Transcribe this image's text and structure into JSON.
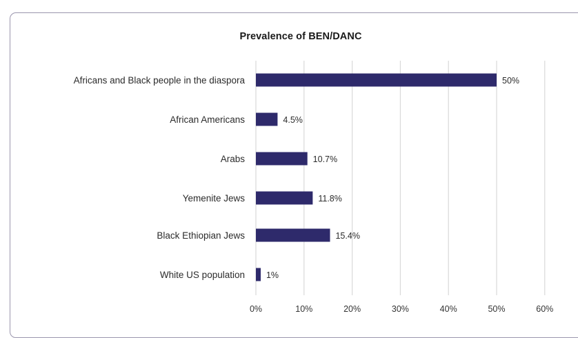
{
  "chart_data": {
    "type": "bar",
    "orientation": "horizontal",
    "title": "Prevalence of BEN/DANC",
    "categories": [
      "Africans and Black people in the diaspora",
      "African Americans",
      "Arabs",
      "Yemenite Jews",
      "Black Ethiopian Jews",
      "White US population"
    ],
    "values": [
      50,
      4.5,
      10.7,
      11.8,
      15.4,
      1
    ],
    "value_labels": [
      "50%",
      "4.5%",
      "10.7%",
      "11.8%",
      "15.4%",
      "1%"
    ],
    "xlim": [
      0,
      60
    ],
    "xticks": [
      0,
      10,
      20,
      30,
      40,
      50,
      60
    ],
    "xtick_labels": [
      "0%",
      "10%",
      "20%",
      "30%",
      "40%",
      "50%",
      "60%"
    ],
    "xlabel": "",
    "ylabel": "",
    "grid": true,
    "bar_color": "#2e2a6b",
    "grid_color": "#d9d9d9"
  }
}
